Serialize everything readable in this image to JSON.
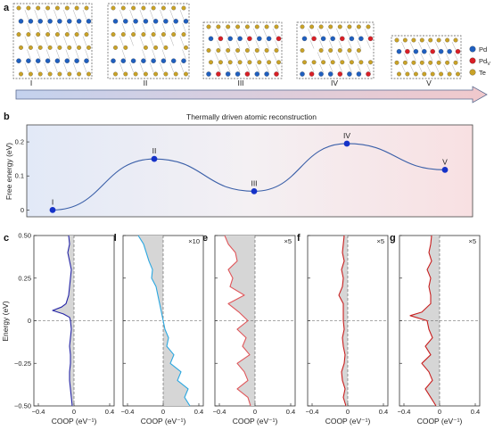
{
  "panel_labels": [
    "a",
    "b",
    "c",
    "d",
    "e",
    "f",
    "g"
  ],
  "panel_a": {
    "stages": [
      "I",
      "II",
      "III",
      "IV",
      "V"
    ],
    "legend": [
      {
        "key": "pd",
        "label": "Pd",
        "color": "#1f5fbf"
      },
      {
        "key": "pdv",
        "label": "Pd",
        "sub": "V",
        "color": "#d81f26"
      },
      {
        "key": "te",
        "label": "Te",
        "color": "#c9a227"
      }
    ]
  },
  "panel_b": {
    "title": "Thermally driven atomic reconstruction",
    "ylabel": "Free energy (eV)",
    "yticks": [
      "0",
      "0.1",
      "0.2"
    ]
  },
  "coop": {
    "ylabel": "Energy (eV)",
    "xlabel": "COOP (eV⁻¹)",
    "yticks": [
      "0.50",
      "0.25",
      "0",
      "−0.25",
      "−0.50"
    ],
    "xticks": [
      "−0.4",
      "0",
      "0.4"
    ],
    "multipliers": [
      "",
      "×10",
      "×5",
      "×5",
      "×5"
    ]
  },
  "chart_data": [
    {
      "type": "line",
      "panel": "b",
      "title": "Thermally driven atomic reconstruction",
      "ylabel": "Free energy (eV)",
      "xlabel": "",
      "ylim": [
        -0.02,
        0.25
      ],
      "points": [
        {
          "label": "I",
          "x": 0,
          "y": 0.0
        },
        {
          "label": "II",
          "x": 1,
          "y": 0.15
        },
        {
          "label": "III",
          "x": 2,
          "y": 0.055
        },
        {
          "label": "IV",
          "x": 3,
          "y": 0.195
        },
        {
          "label": "V",
          "x": 4,
          "y": 0.118
        }
      ],
      "line_color": "#3a5fa8",
      "marker_color": "#1532c8"
    },
    {
      "type": "line",
      "panel": "c",
      "color": "#2424a6",
      "xlim": [
        -0.45,
        0.45
      ],
      "ylim": [
        -0.5,
        0.5
      ],
      "ylabel": "Energy (eV)",
      "xlabel": "COOP (eV⁻¹)",
      "energy": [
        0.5,
        0.45,
        0.4,
        0.35,
        0.3,
        0.25,
        0.2,
        0.15,
        0.1,
        0.08,
        0.06,
        0.04,
        0.02,
        0.0,
        -0.05,
        -0.1,
        -0.15,
        -0.2,
        -0.25,
        -0.3,
        -0.35,
        -0.4,
        -0.45,
        -0.5
      ],
      "coop": [
        -0.06,
        -0.05,
        -0.07,
        -0.05,
        -0.03,
        -0.04,
        -0.05,
        -0.06,
        -0.09,
        -0.14,
        -0.24,
        -0.12,
        -0.05,
        -0.04,
        -0.03,
        -0.04,
        -0.05,
        -0.04,
        -0.04,
        -0.05,
        -0.05,
        -0.04,
        -0.03,
        -0.02
      ]
    },
    {
      "type": "line",
      "panel": "d",
      "color": "#2aa7e0",
      "multiplier": "×10",
      "xlim": [
        -0.45,
        0.45
      ],
      "ylim": [
        -0.5,
        0.5
      ],
      "xlabel": "COOP (eV⁻¹)",
      "energy": [
        0.5,
        0.45,
        0.4,
        0.35,
        0.3,
        0.25,
        0.2,
        0.15,
        0.1,
        0.05,
        0.0,
        -0.05,
        -0.1,
        -0.15,
        -0.2,
        -0.25,
        -0.3,
        -0.35,
        -0.4,
        -0.45,
        -0.5
      ],
      "coop": [
        -0.28,
        -0.22,
        -0.19,
        -0.16,
        -0.12,
        -0.13,
        -0.08,
        -0.06,
        -0.04,
        -0.02,
        0.0,
        0.02,
        0.06,
        0.04,
        0.12,
        0.08,
        0.2,
        0.16,
        0.28,
        0.24,
        0.3
      ]
    },
    {
      "type": "line",
      "panel": "e",
      "color": "#e0565a",
      "multiplier": "×5",
      "xlim": [
        -0.45,
        0.45
      ],
      "ylim": [
        -0.5,
        0.5
      ],
      "xlabel": "COOP (eV⁻¹)",
      "energy": [
        0.5,
        0.45,
        0.4,
        0.35,
        0.3,
        0.25,
        0.2,
        0.15,
        0.1,
        0.05,
        0.0,
        -0.05,
        -0.1,
        -0.15,
        -0.2,
        -0.25,
        -0.3,
        -0.35,
        -0.4,
        -0.45,
        -0.5
      ],
      "coop": [
        -0.34,
        -0.3,
        -0.22,
        -0.2,
        -0.3,
        -0.25,
        -0.28,
        -0.12,
        -0.3,
        -0.18,
        -0.08,
        -0.2,
        -0.1,
        -0.14,
        -0.06,
        -0.2,
        -0.12,
        -0.08,
        -0.2,
        -0.08,
        -0.05
      ]
    },
    {
      "type": "line",
      "panel": "f",
      "color": "#c81e1e",
      "multiplier": "×5",
      "xlim": [
        -0.45,
        0.45
      ],
      "ylim": [
        -0.5,
        0.5
      ],
      "xlabel": "COOP (eV⁻¹)",
      "energy": [
        0.5,
        0.45,
        0.4,
        0.35,
        0.3,
        0.25,
        0.2,
        0.15,
        0.1,
        0.05,
        0.0,
        -0.05,
        -0.1,
        -0.15,
        -0.2,
        -0.25,
        -0.3,
        -0.35,
        -0.4,
        -0.45,
        -0.5
      ],
      "coop": [
        -0.04,
        -0.05,
        -0.06,
        -0.04,
        -0.07,
        -0.05,
        -0.06,
        -0.1,
        -0.05,
        -0.05,
        -0.05,
        -0.04,
        -0.06,
        -0.05,
        -0.03,
        -0.04,
        -0.07,
        -0.06,
        -0.03,
        -0.05,
        -0.02
      ]
    },
    {
      "type": "line",
      "panel": "g",
      "color": "#c81e1e",
      "multiplier": "×5",
      "xlim": [
        -0.45,
        0.45
      ],
      "ylim": [
        -0.5,
        0.5
      ],
      "xlabel": "COOP (eV⁻¹)",
      "energy": [
        0.5,
        0.45,
        0.4,
        0.35,
        0.3,
        0.25,
        0.2,
        0.15,
        0.1,
        0.05,
        0.03,
        0.0,
        -0.05,
        -0.1,
        -0.15,
        -0.2,
        -0.25,
        -0.3,
        -0.35,
        -0.4,
        -0.45,
        -0.5
      ],
      "coop": [
        -0.09,
        -0.1,
        -0.12,
        -0.09,
        -0.14,
        -0.1,
        -0.12,
        -0.1,
        -0.1,
        -0.2,
        -0.33,
        -0.14,
        -0.12,
        -0.08,
        -0.16,
        -0.1,
        -0.2,
        -0.12,
        -0.08,
        -0.16,
        -0.1,
        -0.04
      ]
    }
  ]
}
